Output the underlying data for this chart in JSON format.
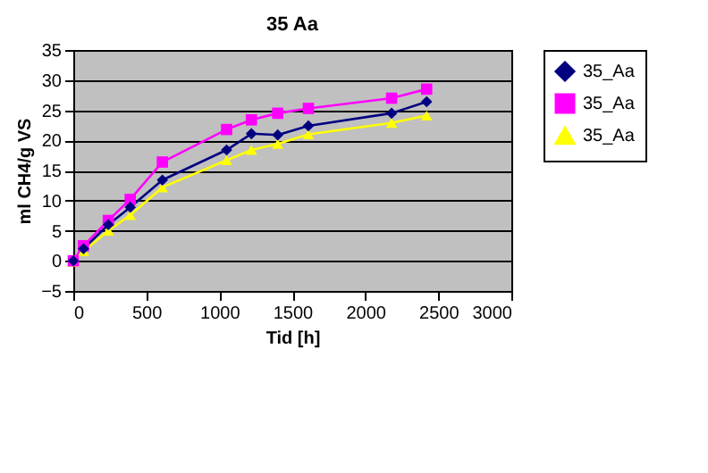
{
  "chart_data": {
    "type": "line",
    "title": "35 Aa",
    "xlabel": "Tid [h]",
    "ylabel": "ml CH4/g VS",
    "x": [
      0,
      70,
      240,
      390,
      610,
      1050,
      1220,
      1400,
      1610,
      2180,
      2420
    ],
    "series": [
      {
        "name": "35_Aa",
        "color": "#000080",
        "marker": "diamond",
        "values": [
          0,
          2.0,
          6.0,
          8.9,
          13.4,
          18.4,
          21.1,
          20.9,
          22.4,
          24.5,
          26.4
        ]
      },
      {
        "name": "35_Aa",
        "color": "#ff00ff",
        "marker": "square",
        "values": [
          0,
          2.5,
          6.7,
          10.2,
          16.4,
          21.8,
          23.4,
          24.5,
          25.3,
          27.0,
          28.5
        ]
      },
      {
        "name": "35_Aa",
        "color": "#ffff00",
        "marker": "triangle",
        "values": [
          -0.2,
          1.6,
          5.0,
          7.6,
          12.2,
          16.7,
          18.4,
          19.4,
          21.0,
          22.9,
          24.1
        ]
      }
    ],
    "xlim": [
      0,
      3000
    ],
    "xticks": [
      0,
      500,
      1000,
      1500,
      2000,
      2500,
      3000
    ],
    "ylim": [
      -5,
      35
    ],
    "yticks": [
      -5,
      0,
      5,
      10,
      15,
      20,
      25,
      30,
      35
    ],
    "grid": "y",
    "legend": "right",
    "line_style": "solid"
  }
}
